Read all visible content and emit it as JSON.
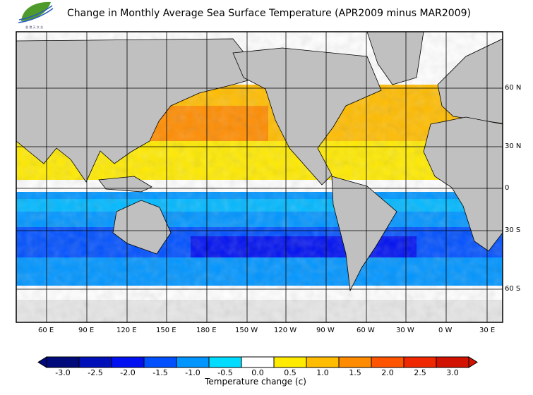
{
  "title": "Change in Monthly Average Sea Surface Temperature (APR2009 minus MAR2009)",
  "logo": {
    "text": "HKO"
  },
  "map": {
    "lon_labels": [
      "60 E",
      "90 E",
      "120 E",
      "150 E",
      "180 E",
      "150 W",
      "120 W",
      "90 W",
      "60 W",
      "30 W",
      "0 W",
      "30 E"
    ],
    "lat_labels": [
      "60 N",
      "30 N",
      "0",
      "30 S",
      "60 S"
    ],
    "land_color": "#c0c0c0",
    "ice_color": "#e6e6e6"
  },
  "colorbar": {
    "title": "Temperature change  (c)",
    "ticks": [
      "-3.0",
      "-2.5",
      "-2.0",
      "-1.5",
      "-1.0",
      "-0.5",
      "0.0",
      "0.5",
      "1.0",
      "1.5",
      "2.0",
      "2.5",
      "3.0"
    ],
    "colors": [
      "#000a7a",
      "#0010b8",
      "#0010f0",
      "#0050ff",
      "#0095ff",
      "#00dcff",
      "#ffffff",
      "#ffea00",
      "#ffbc00",
      "#ff8c00",
      "#ff5500",
      "#f02800",
      "#d21200"
    ],
    "under_color": "#000a7a",
    "over_color": "#d21200"
  }
}
